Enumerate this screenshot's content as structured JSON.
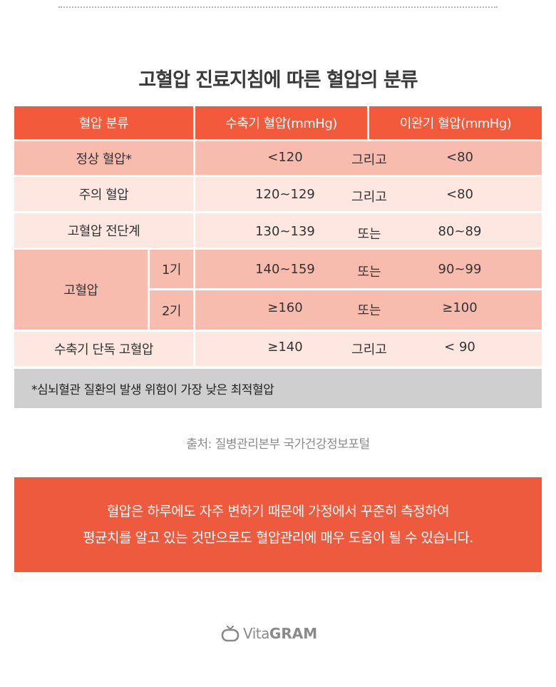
{
  "title": "고혈압 진료지침에 따른 혈압의 분류",
  "table": {
    "headers": [
      "혈압 분류",
      "수축기 혈압(mmHg)",
      "이완기 혈압(mmHg)"
    ],
    "rows": [
      {
        "category": "정상 혈압*",
        "sub": "",
        "systolic": "<120",
        "logic": "그리고",
        "diastolic": "<80"
      },
      {
        "category": "주의 혈압",
        "sub": "",
        "systolic": "120~129",
        "logic": "그리고",
        "diastolic": "<80"
      },
      {
        "category": "고혈압 전단계",
        "sub": "",
        "systolic": "130~139",
        "logic": "또는",
        "diastolic": "80~89"
      },
      {
        "category": "고혈압",
        "sub": "1기",
        "systolic": "140~159",
        "logic": "또는",
        "diastolic": "90~99"
      },
      {
        "category": "",
        "sub": "2기",
        "systolic": "≥160",
        "logic": "또는",
        "diastolic": "≥100"
      },
      {
        "category": "수축기 단독 고혈압",
        "sub": "",
        "systolic": "≥140",
        "logic": "그리고",
        "diastolic": "< 90"
      }
    ]
  },
  "footnote": "*심뇌혈관 질환의 발생 위험이 가장 낮은 최적혈압",
  "source": "출처: 질병관리본부 국가건강정보포털",
  "callout": {
    "line1": "혈압은 하루에도 자주 변하기 때문에 가정에서 꾸준히 측정하여",
    "line2": "평균치를 알고 있는 것만으로도 혈압관리에 매우 도움이 될 수 있습니다."
  },
  "logo": {
    "light": "Vita",
    "bold": "GRAM",
    "icon": "tv-icon"
  },
  "colors": {
    "header": "#f25a3b",
    "row_dark": "#f8bcae",
    "row_light": "#fde7e0",
    "callout": "#ee5a3e",
    "note": "#cfcfcf"
  }
}
